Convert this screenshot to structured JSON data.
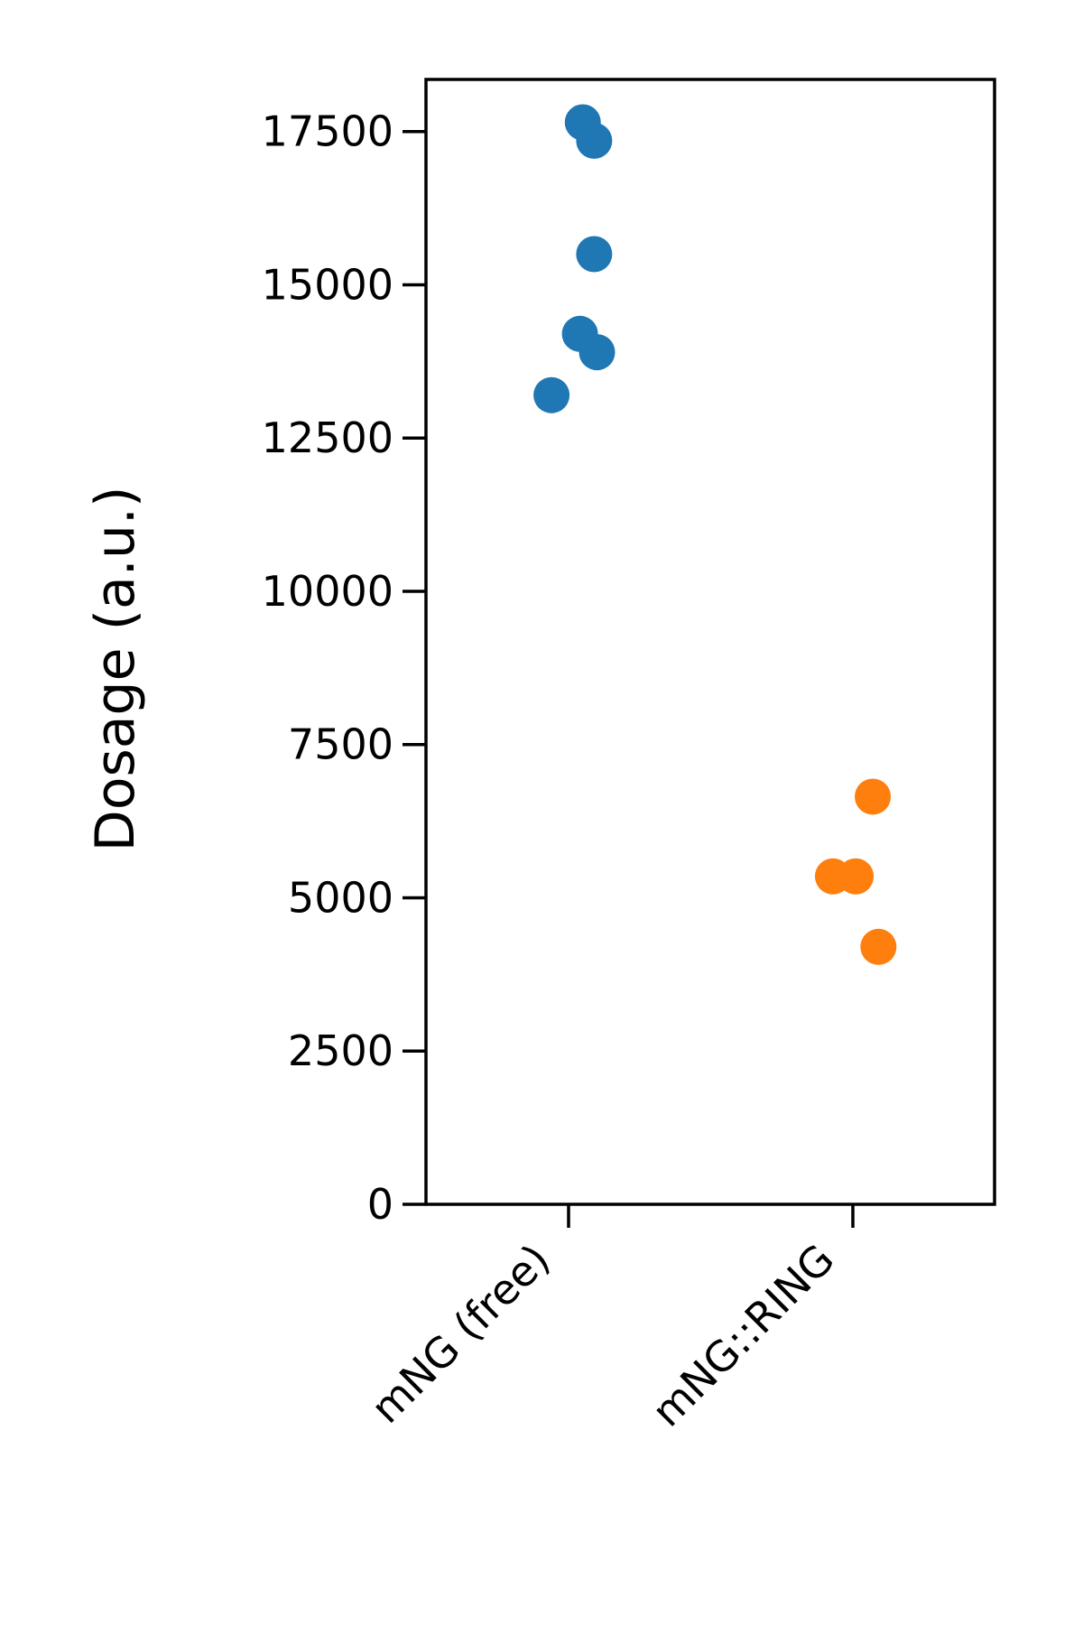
{
  "chart_data": {
    "type": "scatter",
    "title": "",
    "xlabel": "",
    "ylabel": "Dosage (a.u.)",
    "categories": [
      "mNG (free)",
      "mNG::RING"
    ],
    "ylim": [
      0,
      18350
    ],
    "yticks": [
      0,
      2500,
      5000,
      7500,
      10000,
      12500,
      15000,
      17500
    ],
    "grid": false,
    "legend": "none",
    "series": [
      {
        "category": "mNG (free)",
        "color": "#1f77b4",
        "points": [
          {
            "jitter": 0.05,
            "y": 17650
          },
          {
            "jitter": 0.09,
            "y": 17350
          },
          {
            "jitter": 0.09,
            "y": 15500
          },
          {
            "jitter": 0.04,
            "y": 14200
          },
          {
            "jitter": 0.1,
            "y": 13900
          },
          {
            "jitter": -0.06,
            "y": 13200
          }
        ]
      },
      {
        "category": "mNG::RING",
        "color": "#ff7f0e",
        "points": [
          {
            "jitter": 0.07,
            "y": 6650
          },
          {
            "jitter": -0.07,
            "y": 5350
          },
          {
            "jitter": 0.01,
            "y": 5350
          },
          {
            "jitter": 0.09,
            "y": 4200
          }
        ]
      }
    ]
  }
}
